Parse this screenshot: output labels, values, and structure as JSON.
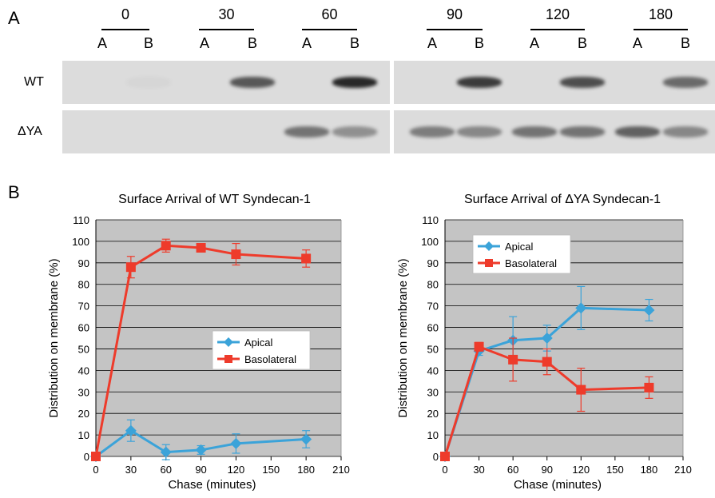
{
  "panel_a": {
    "letter": "A",
    "groups": [
      {
        "time": "0",
        "lanes": [
          "A",
          "B"
        ]
      },
      {
        "time": "30",
        "lanes": [
          "A",
          "B"
        ]
      },
      {
        "time": "60",
        "lanes": [
          "A",
          "B"
        ]
      },
      {
        "time": "90",
        "lanes": [
          "A",
          "B"
        ]
      },
      {
        "time": "120",
        "lanes": [
          "A",
          "B"
        ]
      },
      {
        "time": "180",
        "lanes": [
          "A",
          "B"
        ]
      }
    ],
    "rows": [
      {
        "label": "WT",
        "band_intensity": [
          0,
          0.03,
          0,
          0.7,
          0,
          0.95,
          0,
          0.85,
          0,
          0.75,
          0,
          0.6
        ]
      },
      {
        "label": "ΔYA",
        "band_intensity": [
          0,
          0,
          0,
          0,
          0.55,
          0.4,
          0.5,
          0.45,
          0.55,
          0.55,
          0.65,
          0.45
        ]
      }
    ]
  },
  "panel_b": {
    "letter": "B"
  },
  "chart_data": [
    {
      "type": "line",
      "title": "Surface Arrival of WT Syndecan-1",
      "xlabel": "Chase (minutes)",
      "ylabel": "Distribution on membrane (%)",
      "xlim": [
        0,
        210
      ],
      "ylim": [
        0,
        110
      ],
      "xticks": [
        0,
        30,
        60,
        90,
        120,
        150,
        180,
        210
      ],
      "yticks": [
        0,
        10,
        20,
        30,
        40,
        50,
        60,
        70,
        80,
        90,
        100,
        110
      ],
      "grid": true,
      "legend_position": "center-right",
      "series": [
        {
          "name": "Apical",
          "color": "#3ba3d9",
          "marker": "diamond",
          "x": [
            0,
            30,
            60,
            90,
            120,
            180
          ],
          "y": [
            0,
            12,
            2,
            3,
            6,
            8
          ],
          "err": [
            0,
            5,
            3.5,
            2,
            4.5,
            4
          ]
        },
        {
          "name": "Basolateral",
          "color": "#ee3b2b",
          "marker": "square",
          "x": [
            0,
            30,
            60,
            90,
            120,
            180
          ],
          "y": [
            0,
            88,
            98,
            97,
            94,
            92
          ],
          "err": [
            0,
            5,
            3,
            2,
            5,
            4
          ]
        }
      ]
    },
    {
      "type": "line",
      "title": "Surface Arrival of ΔYA Syndecan-1",
      "xlabel": "Chase (minutes)",
      "ylabel": "Distribution on membrane (%)",
      "xlim": [
        0,
        210
      ],
      "ylim": [
        0,
        110
      ],
      "xticks": [
        0,
        30,
        60,
        90,
        120,
        150,
        180,
        210
      ],
      "yticks": [
        0,
        10,
        20,
        30,
        40,
        50,
        60,
        70,
        80,
        90,
        100,
        110
      ],
      "grid": true,
      "legend_position": "top-left",
      "series": [
        {
          "name": "Apical",
          "color": "#3ba3d9",
          "marker": "diamond",
          "x": [
            0,
            30,
            60,
            90,
            120,
            180
          ],
          "y": [
            0,
            49,
            54,
            55,
            69,
            68
          ],
          "err": [
            0,
            2,
            11,
            6,
            10,
            5
          ]
        },
        {
          "name": "Basolateral",
          "color": "#ee3b2b",
          "marker": "square",
          "x": [
            0,
            30,
            60,
            90,
            120,
            180
          ],
          "y": [
            0,
            51,
            45,
            44,
            31,
            32
          ],
          "err": [
            0,
            2,
            10,
            6,
            10,
            5
          ]
        }
      ]
    }
  ]
}
